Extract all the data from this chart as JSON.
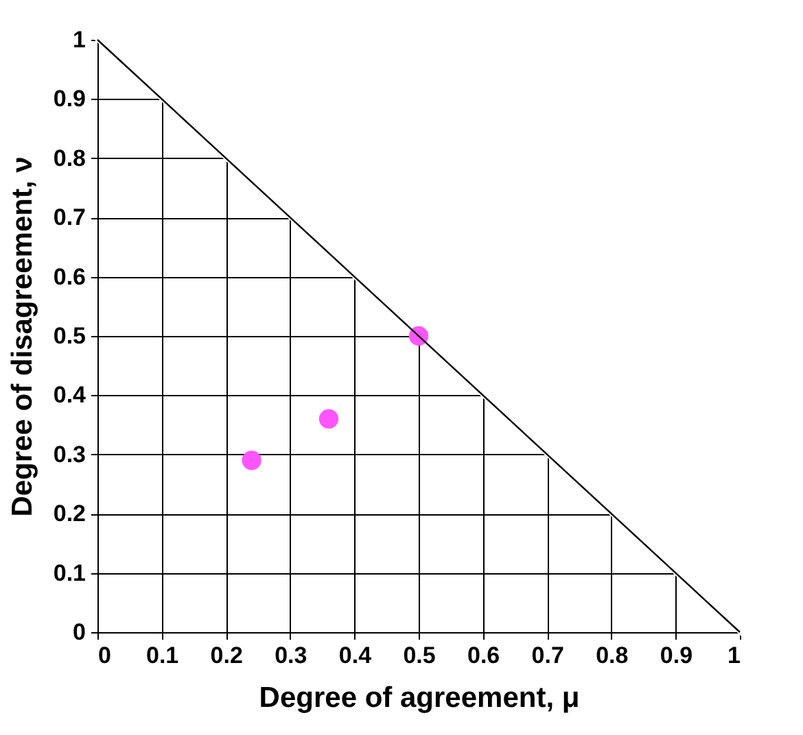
{
  "chart_data": {
    "type": "scatter",
    "xlabel": "Degree of agreement, μ",
    "ylabel": "Degree of disagreement, ν",
    "xlim": [
      0,
      1
    ],
    "ylim": [
      0,
      1
    ],
    "xticks": [
      0,
      0.1,
      0.2,
      0.3,
      0.4,
      0.5,
      0.6,
      0.7,
      0.8,
      0.9,
      1
    ],
    "yticks": [
      0,
      0.1,
      0.2,
      0.3,
      0.4,
      0.5,
      0.6,
      0.7,
      0.8,
      0.9,
      1
    ],
    "grid": true,
    "series": [
      {
        "type": "scatter",
        "marker": "circle",
        "color": "#ff55ff",
        "x": [
          0.24,
          0.36,
          0.5
        ],
        "values": [
          0.29,
          0.36,
          0.5
        ]
      },
      {
        "type": "line",
        "marker": "none",
        "color": "#000000",
        "x": [
          0,
          1
        ],
        "values": [
          1,
          0
        ]
      }
    ]
  }
}
